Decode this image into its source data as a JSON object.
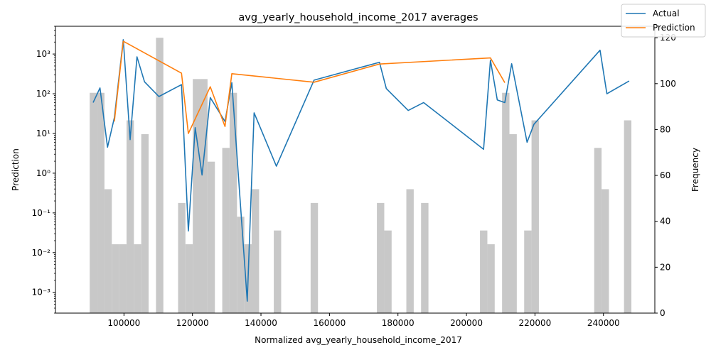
{
  "chart_data": {
    "type": "line",
    "title": "avg_yearly_household_income_2017 averages",
    "xlabel": "Normalized avg_yearly_household_income_2017",
    "ylabel": "Prediction",
    "y2label": "Frequency",
    "xlim": [
      80000,
      255000
    ],
    "ylim_log": [
      0.0003,
      5000
    ],
    "y2lim": [
      0,
      125
    ],
    "yscale": "log",
    "x_ticks": [
      100000,
      120000,
      140000,
      160000,
      180000,
      200000,
      220000,
      240000
    ],
    "x_tick_labels": [
      "100000",
      "120000",
      "140000",
      "160000",
      "180000",
      "200000",
      "220000",
      "240000"
    ],
    "y_ticks": [
      0.001,
      0.01,
      0.1,
      1,
      10,
      100,
      1000
    ],
    "y_tick_labels": [
      "10⁻³",
      "10⁻²",
      "10⁻¹",
      "10⁰",
      "10¹",
      "10²",
      "10³"
    ],
    "y2_ticks": [
      0,
      20,
      40,
      60,
      80,
      100,
      120
    ],
    "y2_tick_labels": [
      "0",
      "20",
      "40",
      "60",
      "80",
      "100",
      "120"
    ],
    "legend_position": "top-right",
    "grid": false,
    "colors": {
      "actual": "#1f77b4",
      "prediction": "#ff7f0e",
      "histogram": "#c8c8c8"
    },
    "histogram": {
      "name": "Frequency",
      "bin_width": 2150,
      "bins": [
        {
          "x": 90000,
          "count": 96
        },
        {
          "x": 92150,
          "count": 96
        },
        {
          "x": 94300,
          "count": 54
        },
        {
          "x": 96450,
          "count": 30
        },
        {
          "x": 98600,
          "count": 30
        },
        {
          "x": 100750,
          "count": 84
        },
        {
          "x": 102900,
          "count": 30
        },
        {
          "x": 105050,
          "count": 78
        },
        {
          "x": 109350,
          "count": 120
        },
        {
          "x": 115800,
          "count": 48
        },
        {
          "x": 117950,
          "count": 30
        },
        {
          "x": 120100,
          "count": 102
        },
        {
          "x": 122250,
          "count": 102
        },
        {
          "x": 124400,
          "count": 66
        },
        {
          "x": 128700,
          "count": 72
        },
        {
          "x": 130850,
          "count": 96
        },
        {
          "x": 133000,
          "count": 42
        },
        {
          "x": 135150,
          "count": 30
        },
        {
          "x": 137300,
          "count": 54
        },
        {
          "x": 143750,
          "count": 36
        },
        {
          "x": 154500,
          "count": 48
        },
        {
          "x": 173850,
          "count": 48
        },
        {
          "x": 176000,
          "count": 36
        },
        {
          "x": 182450,
          "count": 54
        },
        {
          "x": 186750,
          "count": 48
        },
        {
          "x": 203950,
          "count": 36
        },
        {
          "x": 206100,
          "count": 30
        },
        {
          "x": 210400,
          "count": 96
        },
        {
          "x": 212550,
          "count": 78
        },
        {
          "x": 216850,
          "count": 36
        },
        {
          "x": 219000,
          "count": 84
        },
        {
          "x": 237300,
          "count": 72
        },
        {
          "x": 239450,
          "count": 54
        },
        {
          "x": 246000,
          "count": 84
        }
      ]
    },
    "series": [
      {
        "name": "Actual",
        "x": [
          91000,
          93000,
          95200,
          97200,
          99800,
          101800,
          103800,
          106000,
          110200,
          116800,
          118800,
          120800,
          122800,
          125200,
          129500,
          131500,
          136000,
          138000,
          144500,
          155500,
          174600,
          176600,
          183000,
          187500,
          205000,
          207000,
          209000,
          211200,
          213200,
          217700,
          219700,
          239000,
          241000,
          247500
        ],
        "y": [
          60,
          140,
          4.5,
          25,
          2300,
          7,
          850,
          200,
          85,
          170,
          0.035,
          14,
          0.9,
          80,
          20,
          190,
          0.0006,
          33,
          1.5,
          220,
          620,
          135,
          38,
          60,
          4,
          700,
          70,
          60,
          570,
          6,
          17,
          1250,
          100,
          210
        ]
      },
      {
        "name": "Prediction",
        "x": [
          97200,
          99800,
          116800,
          118800,
          125200,
          129500,
          131500,
          155500,
          174600,
          207000,
          211200
        ],
        "y": [
          20,
          2100,
          330,
          10,
          150,
          15,
          320,
          195,
          560,
          800,
          190
        ]
      }
    ]
  }
}
